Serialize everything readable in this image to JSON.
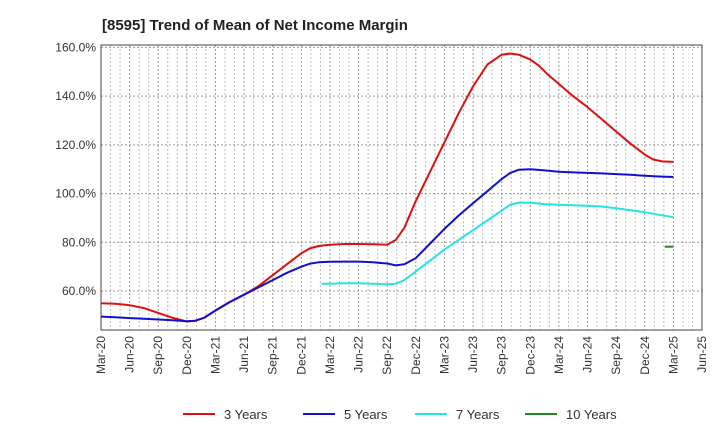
{
  "chart_data": {
    "type": "line",
    "title": "[8595]  Trend of Mean of Net Income Margin",
    "xlabel": "",
    "ylabel": "",
    "x_ticks": [
      "Mar-20",
      "Jun-20",
      "Sep-20",
      "Dec-20",
      "Mar-21",
      "Jun-21",
      "Sep-21",
      "Dec-21",
      "Mar-22",
      "Jun-22",
      "Sep-22",
      "Dec-22",
      "Mar-23",
      "Jun-23",
      "Sep-23",
      "Dec-23",
      "Mar-24",
      "Jun-24",
      "Sep-24",
      "Dec-24",
      "Mar-25",
      "Jun-25"
    ],
    "y_ticks": [
      "60.0%",
      "80.0%",
      "100.0%",
      "120.0%",
      "140.0%",
      "160.0%"
    ],
    "ylim": [
      44,
      161
    ],
    "grid": true,
    "legend_position": "bottom",
    "colors": {
      "3y": "#dd1111",
      "5y": "#1111cc",
      "7y": "#22e5e5",
      "10y": "#228822"
    },
    "series": [
      {
        "name": "3 Years",
        "color": "#dd1111",
        "x": [
          0,
          0.5,
          1,
          1.5,
          2,
          2.5,
          3,
          3.3,
          3.6,
          4,
          4.5,
          5,
          5.5,
          6,
          6.5,
          7,
          7.3,
          7.6,
          8,
          8.5,
          9,
          9.5,
          10,
          10.3,
          10.6,
          11,
          11.5,
          12,
          12.5,
          13,
          13.5,
          14,
          14.3,
          14.6,
          15,
          15.3,
          15.6,
          16,
          16.5,
          17,
          17.5,
          18,
          18.5,
          19,
          19.3,
          19.6,
          20
        ],
        "y": [
          55,
          54.8,
          54.2,
          53,
          51,
          49,
          47.5,
          47.8,
          49,
          52,
          55.5,
          58.5,
          62,
          66.5,
          71,
          75.5,
          77.5,
          78.5,
          79,
          79.3,
          79.3,
          79.2,
          79,
          81,
          86,
          97,
          109,
          121,
          133,
          144,
          153,
          157,
          157.5,
          157,
          155,
          152.5,
          149,
          145,
          140,
          135.5,
          130.5,
          125.5,
          120.5,
          116,
          114,
          113.2,
          113
        ]
      },
      {
        "name": "5 Years",
        "color": "#1111cc",
        "x": [
          0,
          0.5,
          1,
          1.5,
          2,
          2.5,
          3,
          3.3,
          3.6,
          4,
          4.5,
          5,
          5.5,
          6,
          6.5,
          7,
          7.3,
          7.6,
          8,
          8.5,
          9,
          9.5,
          10,
          10.3,
          10.6,
          11,
          11.5,
          12,
          12.5,
          13,
          13.5,
          14,
          14.3,
          14.6,
          15,
          15.5,
          16,
          16.5,
          17,
          17.5,
          18,
          18.5,
          19,
          19.5,
          20
        ],
        "y": [
          49.5,
          49.2,
          48.9,
          48.6,
          48.3,
          48,
          47.6,
          47.8,
          49,
          52,
          55.5,
          58.5,
          61.5,
          64.5,
          67.5,
          70,
          71.2,
          71.8,
          72,
          72.1,
          72.1,
          71.8,
          71.3,
          70.5,
          71,
          73.5,
          79.5,
          85.5,
          91,
          96,
          101,
          106,
          108.5,
          109.8,
          110,
          109.5,
          109,
          108.7,
          108.5,
          108.3,
          108,
          107.7,
          107.3,
          107,
          106.8
        ]
      },
      {
        "name": "7 Years",
        "color": "#22e5e5",
        "x": [
          7.7,
          8,
          8.5,
          9,
          9.5,
          10,
          10.3,
          10.6,
          11,
          11.5,
          12,
          12.5,
          13,
          13.5,
          14,
          14.3,
          14.6,
          15,
          15.5,
          16,
          16.5,
          17,
          17.5,
          18,
          18.5,
          19,
          19.5,
          20
        ],
        "y": [
          63,
          63,
          63.2,
          63.2,
          63,
          62.8,
          63,
          64.5,
          68,
          72.5,
          77,
          81,
          85,
          89,
          93,
          95.5,
          96.3,
          96.2,
          95.7,
          95.4,
          95.2,
          95,
          94.7,
          94,
          93.2,
          92.3,
          91.3,
          90.3
        ]
      },
      {
        "name": "10 Years",
        "color": "#228822",
        "x": [
          19.7,
          20
        ],
        "y": [
          78.2,
          78.2
        ]
      }
    ]
  }
}
